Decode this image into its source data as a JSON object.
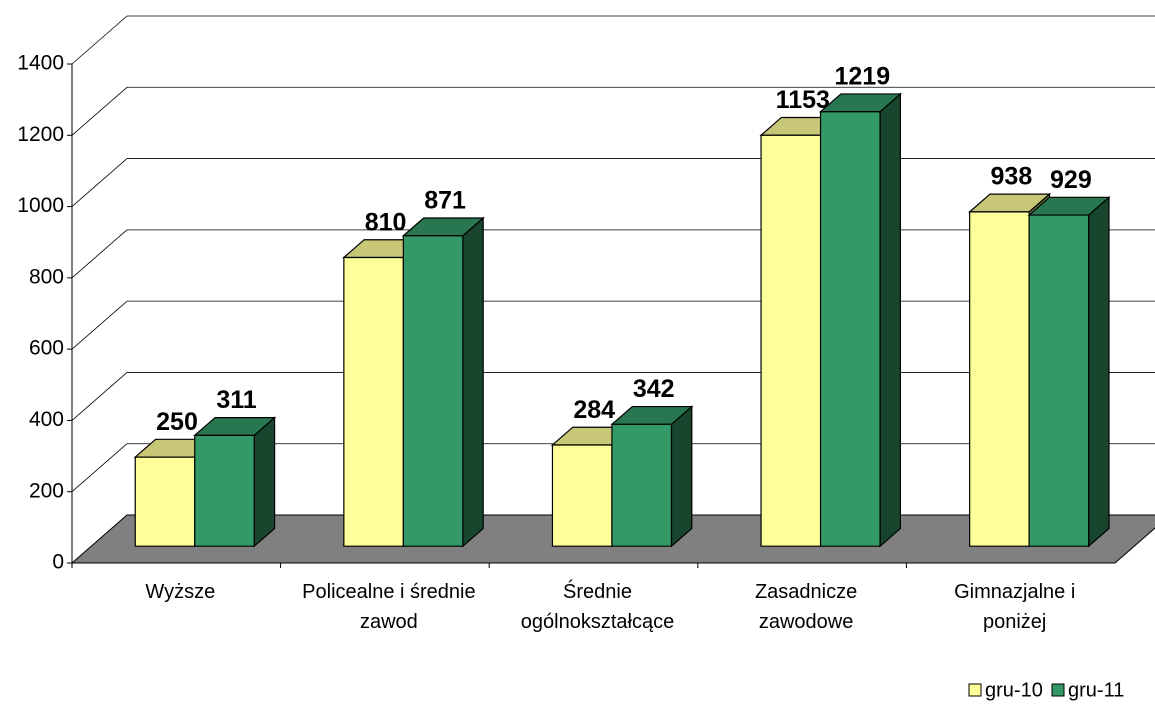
{
  "chart_data": {
    "type": "bar3d",
    "categories": [
      "Wyższe",
      "Policealne i średnie\nzawod",
      "Średnie\nogólnokształcące",
      "Zasadnicze\nzawodowe",
      "Gimnazjalne i\nponiżej"
    ],
    "series": [
      {
        "name": "gru-10",
        "color": "#ffff99",
        "values": [
          250,
          810,
          284,
          1153,
          938
        ]
      },
      {
        "name": "gru-11",
        "color": "#339966",
        "values": [
          311,
          871,
          342,
          1219,
          929
        ]
      }
    ],
    "ylim": [
      0,
      1400
    ],
    "yticks": [
      0,
      200,
      400,
      600,
      800,
      1000,
      1200,
      1400
    ],
    "grid": true,
    "legend": "bottom-right",
    "floor_color": "#808080"
  }
}
